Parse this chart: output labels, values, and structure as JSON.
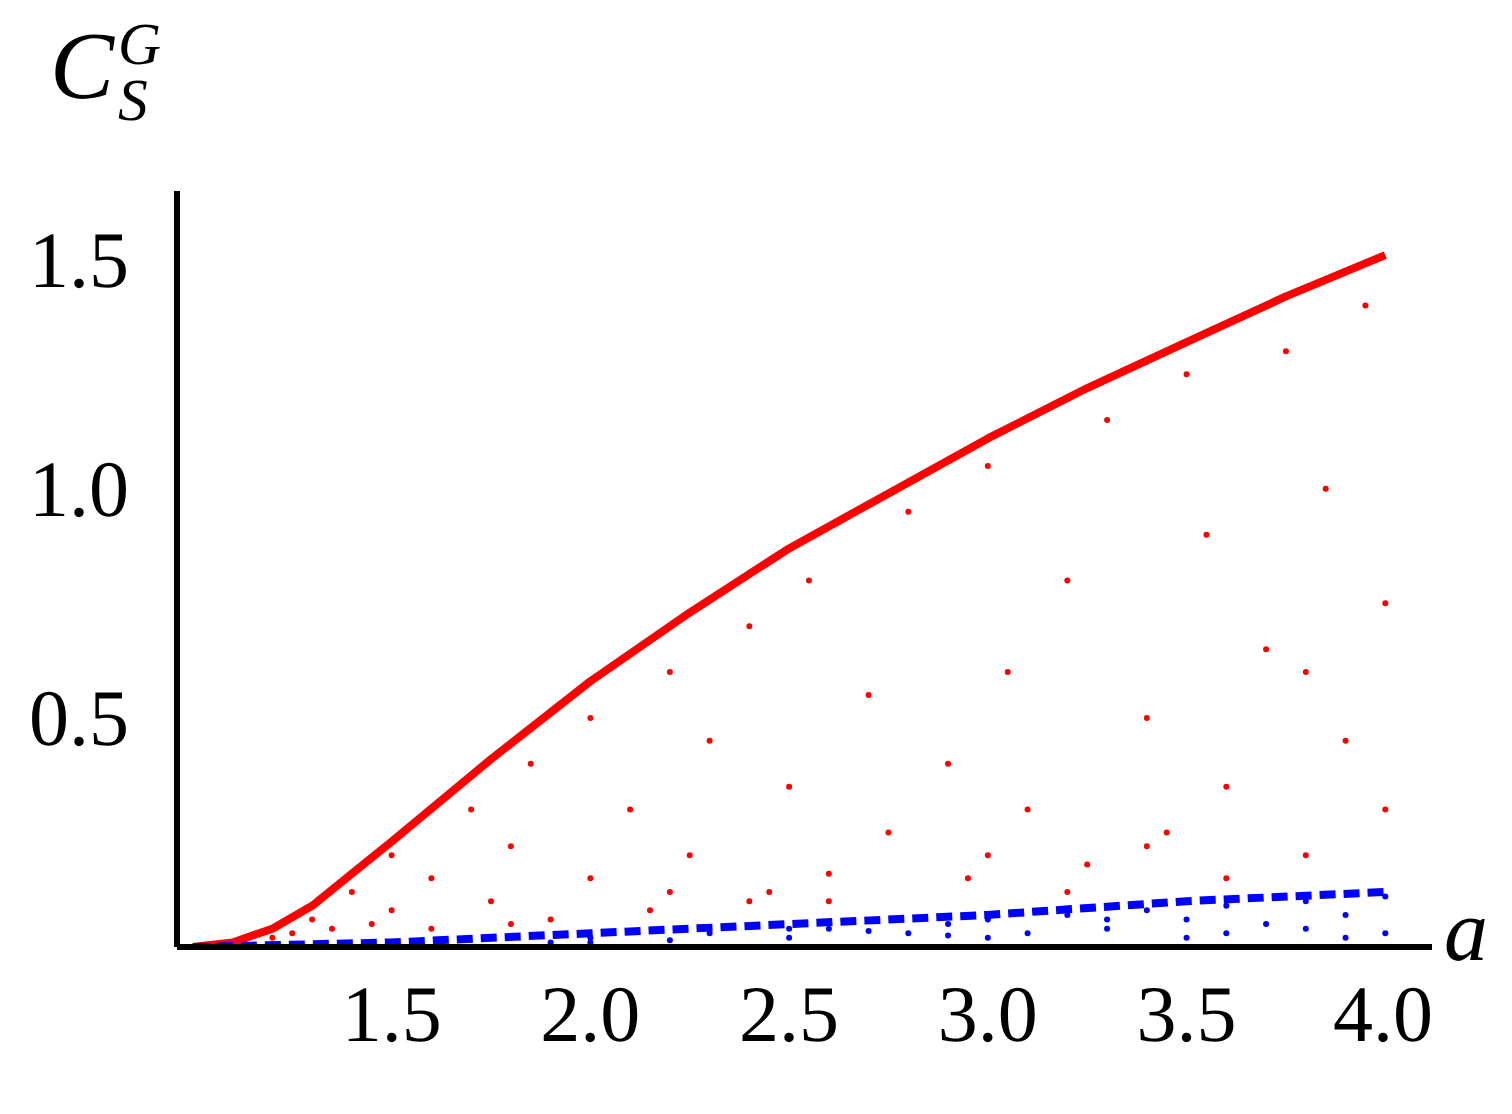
{
  "chart_data": {
    "type": "scatter",
    "xlabel": "a",
    "ylabel": "C$_{S}$$^{G}$",
    "xlim": [
      0.96,
      4.12
    ],
    "ylim": [
      0,
      1.65
    ],
    "xticks": [
      1.5,
      {
        "value": 2.0,
        "label": "2.0"
      },
      2.5,
      {
        "value": 3.0,
        "label": "3.0"
      },
      3.5,
      {
        "value": 4.0,
        "label": "4.0"
      }
    ],
    "yticks": [
      0.5,
      {
        "value": 1.0,
        "label": "1.0"
      },
      1.5
    ],
    "grid": false,
    "series": [
      {
        "marker": "circle",
        "color": "#ff0000",
        "x": [
          1.25,
          1.2,
          1.3,
          1.35,
          1.4,
          1.45,
          1.5,
          1.5,
          1.6,
          1.6,
          1.7,
          1.75,
          1.8,
          1.85,
          1.9,
          2.0,
          2.0,
          2.1,
          2.15,
          2.2,
          2.25,
          2.3,
          2.4,
          2.45,
          2.5,
          2.55,
          2.6,
          2.7,
          2.75,
          2.8,
          2.9,
          2.95,
          3.0,
          3.05,
          3.1,
          3.2,
          3.25,
          3.3,
          3.4,
          3.45,
          3.5,
          3.55,
          3.6,
          3.7,
          3.75,
          3.8,
          3.85,
          3.9,
          3.95,
          4.0,
          4.0,
          2.2,
          2.6,
          3.0,
          3.4,
          3.8,
          1.8,
          2.4,
          3.2,
          3.6
        ],
        "values": [
          0.03,
          0.02,
          0.06,
          0.04,
          0.12,
          0.05,
          0.2,
          0.08,
          0.15,
          0.04,
          0.3,
          0.1,
          0.22,
          0.4,
          0.06,
          0.5,
          0.15,
          0.3,
          0.08,
          0.6,
          0.2,
          0.45,
          0.7,
          0.12,
          0.35,
          0.8,
          0.1,
          0.55,
          0.25,
          0.95,
          0.4,
          0.15,
          1.05,
          0.6,
          0.3,
          0.8,
          0.18,
          1.15,
          0.5,
          0.25,
          1.25,
          0.9,
          0.35,
          0.65,
          1.3,
          0.2,
          1.0,
          0.45,
          1.4,
          0.75,
          0.3,
          0.12,
          0.16,
          0.2,
          0.22,
          0.6,
          0.05,
          0.1,
          0.12,
          0.15
        ]
      },
      {
        "marker": "circle",
        "color": "#0000ff",
        "x": [
          3.6,
          3.9,
          2.9,
          1.9,
          2.0,
          2.2,
          2.3,
          2.5,
          2.6,
          2.8,
          2.9,
          3.0,
          3.1,
          3.2,
          3.3,
          3.4,
          3.5,
          3.6,
          3.7,
          3.8,
          3.9,
          4.0,
          4.0,
          3.5,
          3.0,
          2.5,
          2.0,
          3.8,
          3.3,
          2.7
        ],
        "values": [
          0.03,
          0.02,
          0.025,
          0.01,
          0.02,
          0.015,
          0.03,
          0.02,
          0.04,
          0.03,
          0.05,
          0.06,
          0.03,
          0.07,
          0.04,
          0.08,
          0.06,
          0.09,
          0.05,
          0.1,
          0.07,
          0.11,
          0.03,
          0.02,
          0.02,
          0.04,
          0.01,
          0.04,
          0.06,
          0.035
        ]
      },
      {
        "type": "line",
        "marker": "none",
        "color": "#ff0000",
        "line_style": "solid",
        "x": [
          1.0,
          1.1,
          1.2,
          1.3,
          1.4,
          1.5,
          1.75,
          2.0,
          2.25,
          2.5,
          2.75,
          3.0,
          3.25,
          3.5,
          3.75,
          4.0
        ],
        "values": [
          0,
          0.01,
          0.04,
          0.09,
          0.16,
          0.23,
          0.41,
          0.58,
          0.73,
          0.87,
          0.99,
          1.11,
          1.22,
          1.32,
          1.42,
          1.51
        ]
      },
      {
        "type": "line",
        "marker": "none",
        "color": "#0000ff",
        "line_style": "dashed",
        "x": [
          1.0,
          1.5,
          2.0,
          2.5,
          3.0,
          3.5,
          4.0
        ],
        "values": [
          0,
          0.01,
          0.03,
          0.05,
          0.07,
          0.1,
          0.12
        ]
      }
    ]
  }
}
